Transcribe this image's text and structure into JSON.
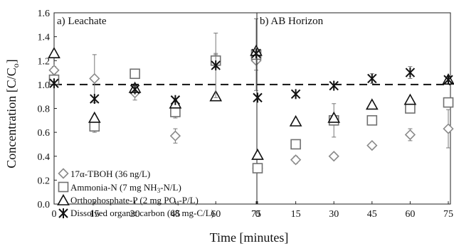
{
  "chart_data": {
    "type": "scatter",
    "ylabel": "Concentration [C/C",
    "ylabel_sub": "o",
    "ylabel_end": "]",
    "xlabel": "Time [minutes]",
    "reference_line": 1.0,
    "panels": [
      {
        "title": "a) Leachate",
        "xticks": [
          "0",
          "15",
          "30",
          "45",
          "60",
          "75"
        ],
        "yticks": [
          "0.0",
          "0.2",
          "0.4",
          "0.6",
          "0.8",
          "1.0",
          "1.2",
          "1.4",
          "1.6"
        ],
        "xlim": [
          0,
          75
        ],
        "ylim": [
          0,
          1.6
        ]
      },
      {
        "title": "b) AB Horizon",
        "xticks": [
          "0",
          "15",
          "30",
          "45",
          "60",
          "75"
        ],
        "xlim": [
          0,
          75
        ],
        "ylim": [
          0,
          1.6
        ]
      }
    ],
    "series": [
      {
        "key": "tboh",
        "name": "17α-TBOH (36 ng/L)",
        "marker": "diamond",
        "color": "#8a8a8a",
        "panels": [
          {
            "x": [
              0,
              15,
              30,
              45,
              60,
              75
            ],
            "y": [
              1.12,
              1.05,
              0.93,
              0.57,
              1.2,
              1.2
            ],
            "err": [
              0.03,
              0.2,
              0.06,
              0.06,
              0.05,
              0.08
            ]
          },
          {
            "x": [
              0,
              15,
              30,
              45,
              60,
              75
            ],
            "y": [
              0.3,
              0.37,
              0.4,
              0.49,
              0.58,
              0.63
            ],
            "err": [
              0.02,
              0.03,
              0.02,
              0.01,
              0.05,
              0.16
            ]
          }
        ]
      },
      {
        "key": "nh3",
        "name": "Ammonia-N (7 mg NH",
        "name_sub": "3",
        "name_end": "-N/L)",
        "marker": "square",
        "color": "#707070",
        "panels": [
          {
            "x": [
              0,
              15,
              30,
              45,
              60,
              75
            ],
            "y": [
              1.04,
              0.65,
              1.09,
              0.77,
              1.2,
              1.25
            ],
            "err": [
              0.02,
              0.05,
              0.03,
              0.05,
              0.06,
              0.3
            ]
          },
          {
            "x": [
              0,
              15,
              30,
              45,
              60,
              75
            ],
            "y": [
              0.3,
              0.5,
              0.7,
              0.7,
              0.8,
              0.85
            ],
            "err": [
              0.02,
              0.03,
              0.14,
              0.02,
              0.03,
              0.01
            ]
          }
        ]
      },
      {
        "key": "po4",
        "name": "Orthophosphate-P (2 mg PO",
        "name_sub": "4",
        "name_end": "-P/L)",
        "marker": "triangle",
        "color": "#111111",
        "panels": [
          {
            "x": [
              0,
              15,
              30,
              45,
              60,
              75
            ],
            "y": [
              1.26,
              0.72,
              0.97,
              0.84,
              0.9,
              1.28
            ],
            "err": [
              0,
              0,
              0,
              0,
              0,
              0
            ]
          },
          {
            "x": [
              0,
              15,
              30,
              45,
              60,
              75
            ],
            "y": [
              0.41,
              0.69,
              0.72,
              0.83,
              0.87,
              1.04
            ],
            "err": [
              0,
              0,
              0,
              0,
              0,
              0
            ]
          }
        ]
      },
      {
        "key": "doc",
        "name": "Dissolved organic carbon (68 mg-C/L)",
        "marker": "star",
        "color": "#111111",
        "panels": [
          {
            "x": [
              0,
              15,
              30,
              45,
              60,
              75
            ],
            "y": [
              1.01,
              0.88,
              0.96,
              0.87,
              1.16,
              1.26
            ],
            "err": [
              0,
              0,
              0,
              0,
              0.27,
              0
            ]
          },
          {
            "x": [
              0,
              15,
              30,
              45,
              60,
              75
            ],
            "y": [
              0.89,
              0.92,
              0.99,
              1.05,
              1.1,
              1.04
            ],
            "err": [
              0,
              0,
              0,
              0.04,
              0.05,
              0
            ]
          }
        ]
      }
    ]
  }
}
